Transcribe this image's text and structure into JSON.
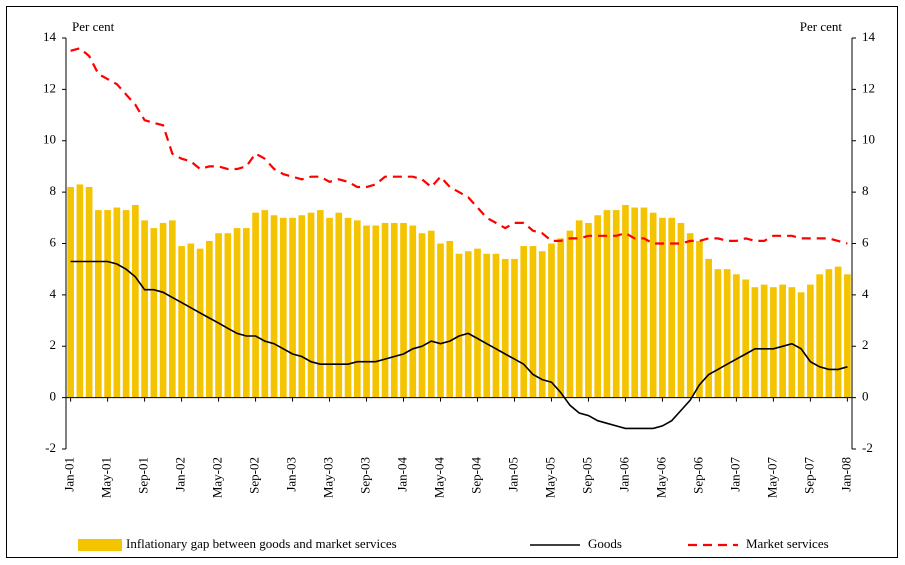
{
  "chart_data": {
    "type": "bar",
    "y_label": "Per cent",
    "y2_label": "Per cent",
    "categories": [
      "Jan-01",
      null,
      null,
      null,
      "May-01",
      null,
      null,
      null,
      "Sep-01",
      null,
      null,
      null,
      "Jan-02",
      null,
      null,
      null,
      "May-02",
      null,
      null,
      null,
      "Sep-02",
      null,
      null,
      null,
      "Jan-03",
      null,
      null,
      null,
      "May-03",
      null,
      null,
      null,
      "Sep-03",
      null,
      null,
      null,
      "Jan-04",
      null,
      null,
      null,
      "May-04",
      null,
      null,
      null,
      "Sep-04",
      null,
      null,
      null,
      "Jan-05",
      null,
      null,
      null,
      "May-05",
      null,
      null,
      null,
      "Sep-05",
      null,
      null,
      null,
      "Jan-06",
      null,
      null,
      null,
      "May-06",
      null,
      null,
      null,
      "Sep-06",
      null,
      null,
      null,
      "Jan-07",
      null,
      null,
      null,
      "May-07",
      null,
      null,
      null,
      "Sep-07",
      null,
      null,
      null,
      "Jan-08"
    ],
    "series": [
      {
        "name": "Inflationary gap between goods and market services",
        "type": "bar",
        "color": "#f5c400",
        "values": [
          8.2,
          8.3,
          8.2,
          7.3,
          7.3,
          7.4,
          7.3,
          7.5,
          6.9,
          6.6,
          6.8,
          6.9,
          5.9,
          6.0,
          5.8,
          6.1,
          6.4,
          6.4,
          6.6,
          6.6,
          7.2,
          7.3,
          7.1,
          7.0,
          7.0,
          7.1,
          7.2,
          7.3,
          7.0,
          7.2,
          7.0,
          6.9,
          6.7,
          6.7,
          6.8,
          6.8,
          6.8,
          6.7,
          6.4,
          6.5,
          6.0,
          6.1,
          5.6,
          5.7,
          5.8,
          5.6,
          5.6,
          5.4,
          5.4,
          5.9,
          5.9,
          5.7,
          6.0,
          6.2,
          6.5,
          6.9,
          6.8,
          7.1,
          7.3,
          7.3,
          7.5,
          7.4,
          7.4,
          7.2,
          7.0,
          7.0,
          6.8,
          6.4,
          6.1,
          5.4,
          5.0,
          5.0,
          4.8,
          4.6,
          4.3,
          4.4,
          4.3,
          4.4,
          4.3,
          4.1,
          4.4,
          4.8,
          5.0,
          5.1,
          4.8
        ]
      },
      {
        "name": "Goods",
        "type": "line",
        "color": "#000000",
        "dashed": false,
        "values": [
          5.3,
          5.3,
          5.3,
          5.3,
          5.3,
          5.2,
          5.0,
          4.7,
          4.2,
          4.2,
          4.1,
          3.9,
          3.7,
          3.5,
          3.3,
          3.1,
          2.9,
          2.7,
          2.5,
          2.4,
          2.4,
          2.2,
          2.1,
          1.9,
          1.7,
          1.6,
          1.4,
          1.3,
          1.3,
          1.3,
          1.3,
          1.4,
          1.4,
          1.4,
          1.5,
          1.6,
          1.7,
          1.9,
          2.0,
          2.2,
          2.1,
          2.2,
          2.4,
          2.5,
          2.3,
          2.1,
          1.9,
          1.7,
          1.5,
          1.3,
          0.9,
          0.7,
          0.6,
          0.2,
          -0.3,
          -0.6,
          -0.7,
          -0.9,
          -1.0,
          -1.1,
          -1.2,
          -1.2,
          -1.2,
          -1.2,
          -1.1,
          -0.9,
          -0.5,
          -0.1,
          0.5,
          0.9,
          1.1,
          1.3,
          1.5,
          1.7,
          1.9,
          1.9,
          1.9,
          2.0,
          2.1,
          1.9,
          1.4,
          1.2,
          1.1,
          1.1,
          1.2
        ]
      },
      {
        "name": "Market services",
        "type": "line",
        "color": "#ff0000",
        "dashed": true,
        "values": [
          13.5,
          13.6,
          13.3,
          12.6,
          12.4,
          12.2,
          11.8,
          11.4,
          10.8,
          10.7,
          10.6,
          9.5,
          9.3,
          9.2,
          8.9,
          9.0,
          9.0,
          8.9,
          8.9,
          9.0,
          9.5,
          9.3,
          8.9,
          8.7,
          8.6,
          8.5,
          8.6,
          8.6,
          8.4,
          8.5,
          8.4,
          8.2,
          8.2,
          8.3,
          8.6,
          8.6,
          8.6,
          8.6,
          8.5,
          8.2,
          8.6,
          8.2,
          8.0,
          7.8,
          7.4,
          7.0,
          6.8,
          6.6,
          6.8,
          6.8,
          6.5,
          6.4,
          6.1,
          6.1,
          6.2,
          6.2,
          6.3,
          6.3,
          6.3,
          6.3,
          6.4,
          6.2,
          6.2,
          6.0,
          6.0,
          6.0,
          6.0,
          6.1,
          6.1,
          6.2,
          6.2,
          6.1,
          6.1,
          6.2,
          6.1,
          6.1,
          6.3,
          6.3,
          6.3,
          6.2,
          6.2,
          6.2,
          6.2,
          6.1,
          6.0
        ]
      }
    ],
    "ylim": [
      -2,
      14
    ],
    "yticks": [
      -2,
      0,
      2,
      4,
      6,
      8,
      10,
      12,
      14
    ],
    "y2lim": [
      -2,
      14
    ],
    "y2ticks": [
      -2,
      0,
      2,
      4,
      6,
      8,
      10,
      12,
      14
    ]
  }
}
